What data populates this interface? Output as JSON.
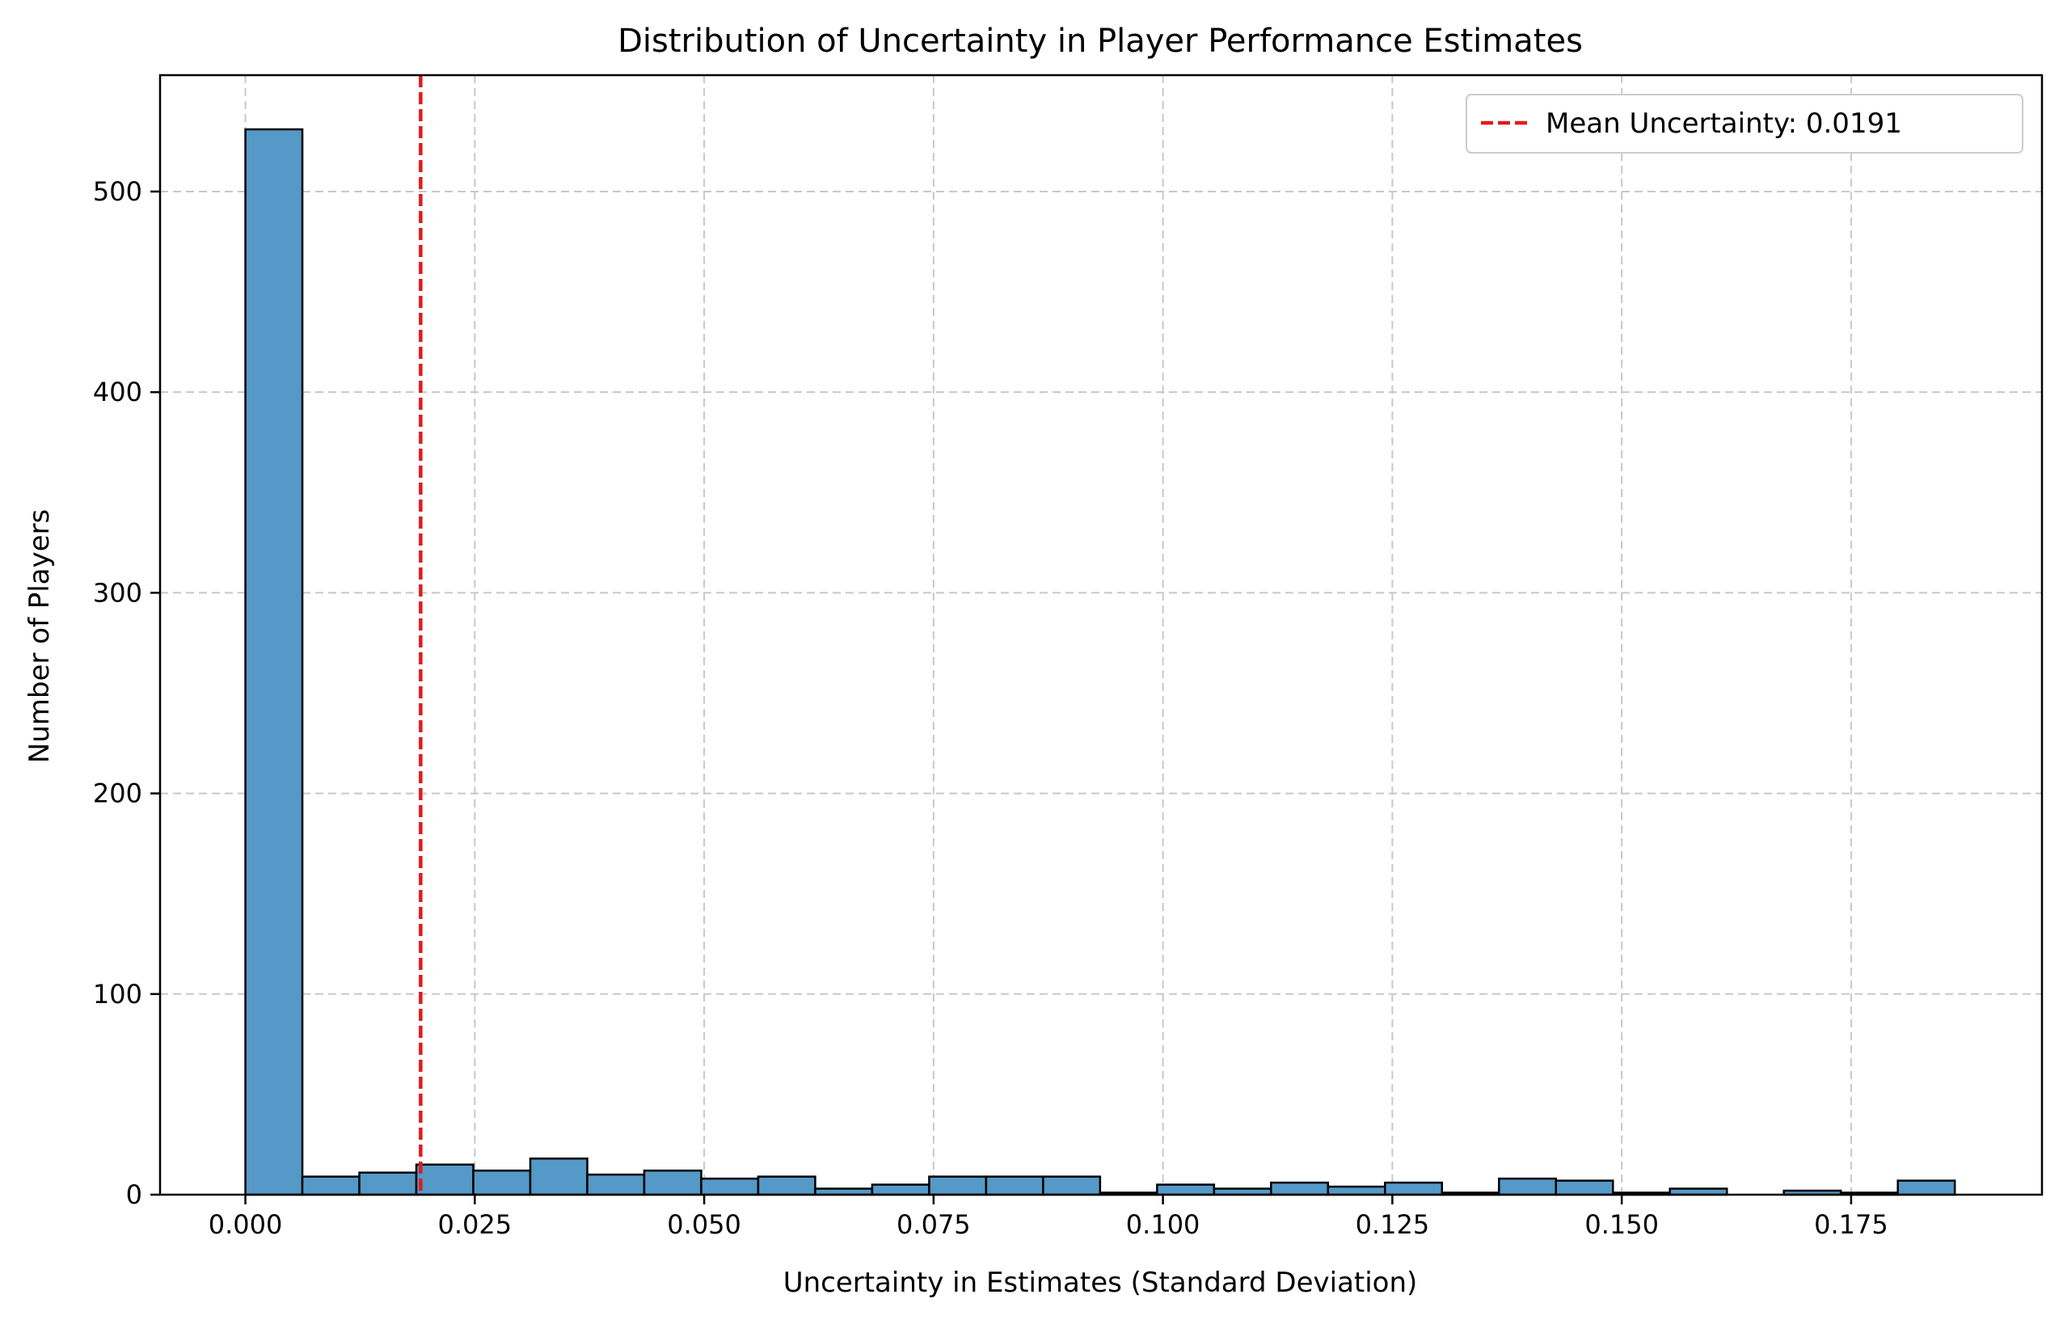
{
  "chart_data": {
    "type": "bar",
    "title": "Distribution of Uncertainty in Player Performance Estimates",
    "xlabel": "Uncertainty in Estimates (Standard Deviation)",
    "ylabel": "Number of Players",
    "xlim": [
      -0.0093,
      0.1958
    ],
    "ylim": [
      0,
      558
    ],
    "xticks": [
      0.0,
      0.025,
      0.05,
      0.075,
      0.1,
      0.125,
      0.15,
      0.175
    ],
    "xtick_labels": [
      "0.000",
      "0.025",
      "0.050",
      "0.075",
      "0.100",
      "0.125",
      "0.150",
      "0.175"
    ],
    "yticks": [
      0,
      100,
      200,
      300,
      400,
      500
    ],
    "ytick_labels": [
      "0",
      "100",
      "200",
      "300",
      "400",
      "500"
    ],
    "grid": true,
    "legend_position": "top-right",
    "bar_color": "#5499c7",
    "bar_edge_color": "#000000",
    "bins": {
      "start": 0.0,
      "width": 0.00621,
      "counts": [
        531,
        9,
        11,
        15,
        12,
        18,
        10,
        12,
        8,
        9,
        3,
        5,
        9,
        9,
        9,
        1,
        5,
        3,
        6,
        4,
        6,
        1,
        8,
        7,
        1,
        3,
        0,
        2,
        1,
        7
      ]
    },
    "mean_line": {
      "value": 0.0191,
      "label": "Mean Uncertainty: 0.0191",
      "color": "#e31a1c"
    }
  }
}
